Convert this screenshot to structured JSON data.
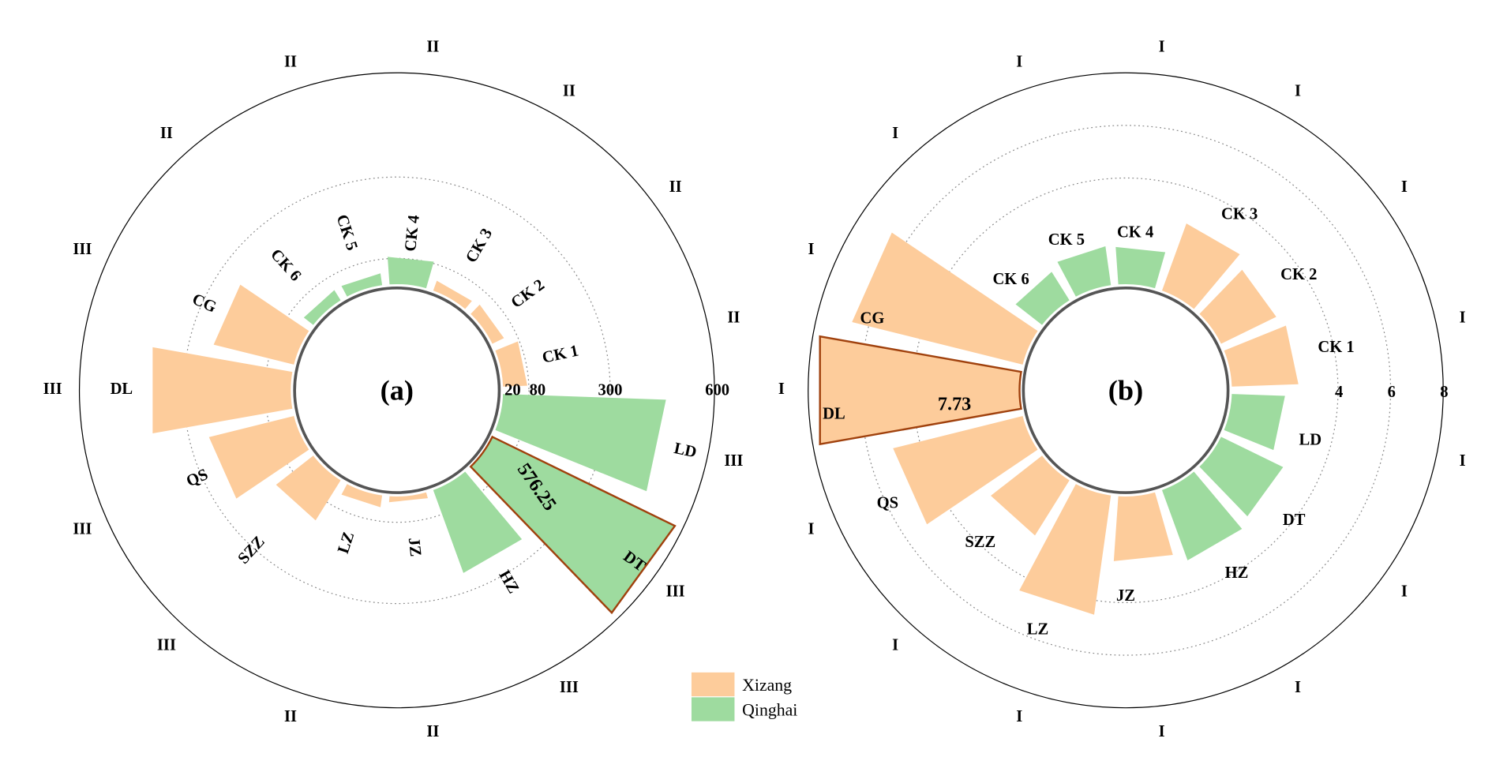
{
  "legend": [
    {
      "label": "Xizang",
      "color": "#fdcc9b"
    },
    {
      "label": "Qinghai",
      "color": "#9edb9f"
    }
  ],
  "highlight_color": "#a0410d",
  "chart_data": [
    {
      "type": "bar",
      "subtype": "polar",
      "panel_label": "(a)",
      "categories": [
        "CK 4",
        "CK 3",
        "CK 2",
        "CK 1",
        "LD",
        "DT",
        "HZ",
        "JZ",
        "LZ",
        "SZZ",
        "QS",
        "DL",
        "CG",
        "CK 6",
        "CK 5"
      ],
      "groups": [
        "Qinghai",
        "Xizang",
        "Xizang",
        "Xizang",
        "Qinghai",
        "Qinghai",
        "Qinghai",
        "Xizang",
        "Xizang",
        "Xizang",
        "Xizang",
        "Xizang",
        "Xizang",
        "Qinghai",
        "Qinghai"
      ],
      "values": [
        85,
        49,
        54,
        77,
        461,
        576.25,
        249,
        40,
        52,
        138,
        247,
        400,
        234,
        52,
        52
      ],
      "grades": [
        "II",
        "II",
        "II",
        "II",
        "III",
        "III",
        "III",
        "II",
        "II",
        "III",
        "III",
        "III",
        "III",
        "II",
        "II"
      ],
      "radial_ticks": [
        "20",
        "80",
        "300",
        "600"
      ],
      "radial_tick_values": [
        20,
        80,
        300,
        600
      ],
      "highlight": {
        "category": "DT",
        "label": "576.25"
      },
      "grid": true
    },
    {
      "type": "bar",
      "subtype": "polar",
      "panel_label": "(b)",
      "categories": [
        "CK 4",
        "CK 3",
        "CK 2",
        "CK 1",
        "LD",
        "DT",
        "HZ",
        "JZ",
        "LZ",
        "SZZ",
        "QS",
        "DL",
        "CG",
        "CK 6",
        "CK 5"
      ],
      "groups": [
        "Qinghai",
        "Xizang",
        "Xizang",
        "Xizang",
        "Qinghai",
        "Qinghai",
        "Qinghai",
        "Xizang",
        "Xizang",
        "Xizang",
        "Xizang",
        "Xizang",
        "Xizang",
        "Qinghai",
        "Qinghai"
      ],
      "values": [
        1.38,
        2.67,
        2.29,
        2.49,
        1.98,
        2.58,
        2.8,
        2.43,
        4.54,
        2.43,
        5.04,
        7.73,
        6.65,
        1.23,
        1.45
      ],
      "grades": [
        "I",
        "I",
        "I",
        "I",
        "I",
        "I",
        "I",
        "I",
        "I",
        "I",
        "I",
        "I",
        "I",
        "I",
        "I"
      ],
      "radial_ticks": [
        "4",
        "6",
        "8"
      ],
      "radial_tick_values": [
        4,
        6,
        8
      ],
      "highlight": {
        "category": "DL",
        "label": "7.73"
      },
      "grid": true
    }
  ]
}
